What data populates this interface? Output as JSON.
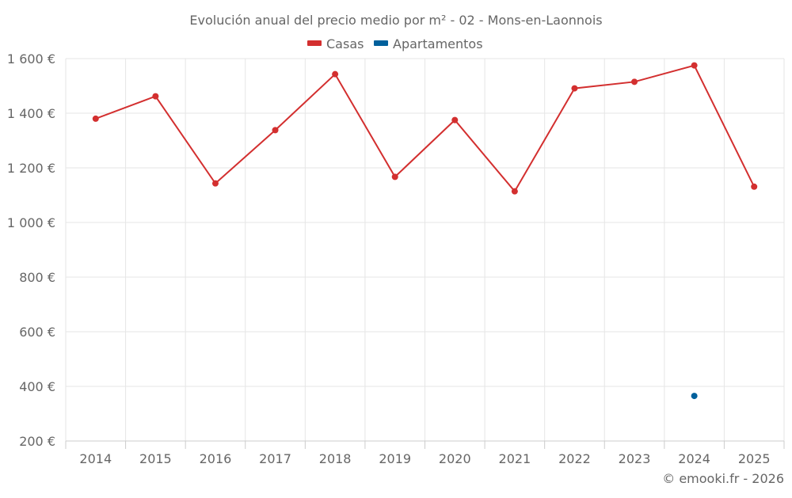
{
  "chart_data": {
    "type": "line",
    "title": "Evolución anual del precio medio por m² - 02 - Mons-en-Laonnois",
    "xlabel": "",
    "ylabel": "",
    "categories": [
      "2014",
      "2015",
      "2016",
      "2017",
      "2018",
      "2019",
      "2020",
      "2021",
      "2022",
      "2023",
      "2024",
      "2025"
    ],
    "ylim": [
      200,
      1600
    ],
    "yticks": [
      200,
      400,
      600,
      800,
      1000,
      1200,
      1400,
      1600
    ],
    "ytick_labels": [
      "200 €",
      "400 €",
      "600 €",
      "800 €",
      "1 000 €",
      "1 200 €",
      "1 400 €",
      "1 600 €"
    ],
    "grid": true,
    "legend_position": "top-center",
    "series": [
      {
        "name": "Casas",
        "color": "#d32f2f",
        "values": [
          1380,
          1462,
          1143,
          1338,
          1543,
          1167,
          1375,
          1114,
          1491,
          1515,
          1575,
          1131
        ]
      },
      {
        "name": "Apartamentos",
        "color": "#00609c",
        "values": [
          null,
          null,
          null,
          null,
          null,
          null,
          null,
          null,
          null,
          null,
          365,
          null
        ]
      }
    ]
  },
  "credit": "© emooki.fr - 2026"
}
